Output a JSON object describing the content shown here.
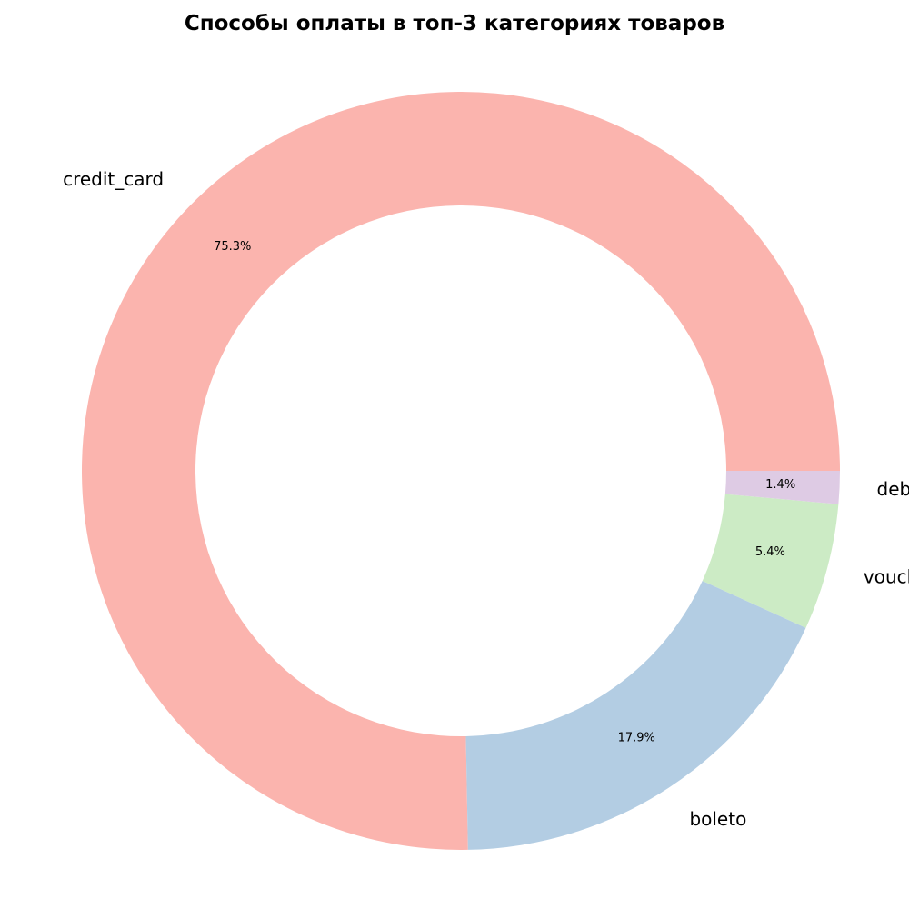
{
  "chart_data": {
    "type": "pie",
    "donut": true,
    "title": "Способы оплаты в топ-3 категориях товаров",
    "start_angle_deg": 0,
    "direction": "counterclockwise",
    "slices": [
      {
        "label": "credit_card",
        "value": 75.3,
        "pct_label": "75.3%",
        "color": "#fbb4ae"
      },
      {
        "label": "boleto",
        "value": 17.9,
        "pct_label": "17.9%",
        "color": "#b3cde3"
      },
      {
        "label": "voucher",
        "value": 5.4,
        "pct_label": "5.4%",
        "color": "#ccebc5"
      },
      {
        "label": "debit_card",
        "value": 1.4,
        "pct_label": "1.4%",
        "color": "#decbe4"
      }
    ],
    "legend": "none"
  }
}
